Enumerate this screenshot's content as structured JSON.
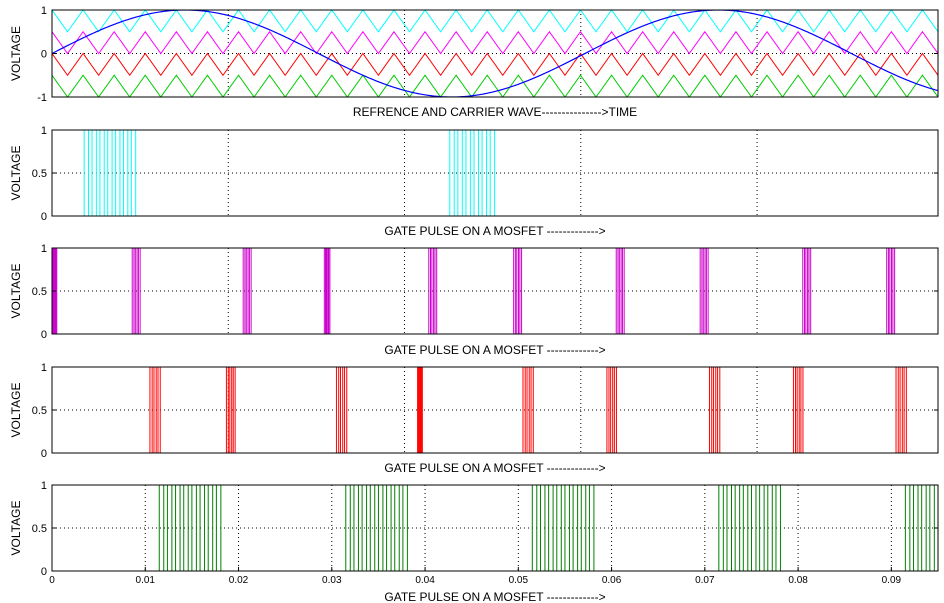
{
  "chart_data": [
    {
      "type": "line",
      "title": "",
      "ylabel": "VOLTAGE",
      "xlabel": "REFRENCE AND CARRIER WAVE--------------->TIME",
      "ylim": [
        -1,
        1
      ],
      "xlim": [
        0,
        0.095
      ],
      "yticks": [
        "-1",
        "0",
        "1"
      ],
      "xticks": [],
      "grid": true,
      "reference_sine": {
        "color": "#0000ff",
        "amplitude": 1,
        "frequency_hz": 17.5,
        "phase_deg": 0
      },
      "carriers": [
        {
          "color": "#00ffff",
          "band": [
            0.5,
            1
          ],
          "frequency_hz": 300
        },
        {
          "color": "#ff00ff",
          "band": [
            0,
            0.5
          ],
          "frequency_hz": 300
        },
        {
          "color": "#ff0000",
          "band": [
            -0.5,
            0
          ],
          "frequency_hz": 300
        },
        {
          "color": "#00cc00",
          "band": [
            -1,
            -0.5
          ],
          "frequency_hz": 300
        }
      ]
    },
    {
      "type": "line",
      "ylabel": "VOLTAGE",
      "xlabel": "GATE PULSE ON A MOSFET ------------->",
      "ylim": [
        0,
        1
      ],
      "yticks": [
        "0",
        "0.5",
        "1"
      ],
      "color": "#00ffff",
      "pulse_trains": [
        [
          0.00345,
          0.00935
        ],
        [
          0.04265,
          0.04785
        ]
      ]
    },
    {
      "type": "line",
      "ylabel": "VOLTAGE",
      "xlabel": "GATE PULSE ON A MOSFET ------------->",
      "ylim": [
        0,
        1
      ],
      "yticks": [
        "0",
        "0.5",
        "1"
      ],
      "color": "#cc00cc",
      "pulse_trains": [
        [
          0,
          0.0006
        ],
        [
          0.0086,
          0.0096
        ],
        [
          0.0205,
          0.0215
        ],
        [
          0.0292,
          0.0299
        ],
        [
          0.0404,
          0.0414
        ],
        [
          0.0495,
          0.0505
        ],
        [
          0.0605,
          0.0615
        ],
        [
          0.0695,
          0.0705
        ],
        [
          0.0805,
          0.0815
        ],
        [
          0.0895,
          0.0905
        ]
      ]
    },
    {
      "type": "line",
      "ylabel": "VOLTAGE",
      "xlabel": "GATE PULSE ON A MOSFET ------------->",
      "ylim": [
        0,
        1
      ],
      "yticks": [
        "0",
        "0.5",
        "1"
      ],
      "color": "#ff0000",
      "pulse_trains": [
        [
          0.0105,
          0.0118
        ],
        [
          0.0187,
          0.0198
        ],
        [
          0.0305,
          0.0318
        ],
        [
          0.0392,
          0.0398
        ],
        [
          0.0505,
          0.0518
        ],
        [
          0.0595,
          0.0607
        ],
        [
          0.0705,
          0.0718
        ],
        [
          0.0795,
          0.0807
        ],
        [
          0.0905,
          0.0918
        ]
      ]
    },
    {
      "type": "line",
      "ylabel": "VOLTAGE",
      "xlabel": "GATE PULSE ON A MOSFET ------------->",
      "ylim": [
        0,
        1
      ],
      "yticks": [
        "0",
        "0.5",
        "1"
      ],
      "xticks": [
        "0",
        "0.01",
        "0.02",
        "0.03",
        "0.04",
        "0.05",
        "0.06",
        "0.07",
        "0.08",
        "0.09"
      ],
      "xlim": [
        0,
        0.095
      ],
      "color": "#008000",
      "pulse_trains": [
        [
          0.0115,
          0.0185
        ],
        [
          0.0315,
          0.0385
        ],
        [
          0.0515,
          0.0585
        ],
        [
          0.0715,
          0.0785
        ],
        [
          0.0915,
          0.095
        ]
      ]
    }
  ]
}
